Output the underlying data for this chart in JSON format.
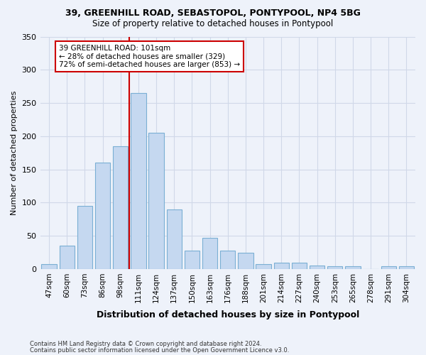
{
  "title1": "39, GREENHILL ROAD, SEBASTOPOL, PONTYPOOL, NP4 5BG",
  "title2": "Size of property relative to detached houses in Pontypool",
  "xlabel": "Distribution of detached houses by size in Pontypool",
  "ylabel": "Number of detached properties",
  "categories": [
    "47sqm",
    "60sqm",
    "73sqm",
    "86sqm",
    "98sqm",
    "111sqm",
    "124sqm",
    "137sqm",
    "150sqm",
    "163sqm",
    "176sqm",
    "188sqm",
    "201sqm",
    "214sqm",
    "227sqm",
    "240sqm",
    "253sqm",
    "265sqm",
    "278sqm",
    "291sqm",
    "304sqm"
  ],
  "values": [
    7,
    35,
    95,
    160,
    185,
    265,
    205,
    90,
    28,
    47,
    28,
    25,
    7,
    9,
    10,
    5,
    4,
    4,
    0,
    4,
    4
  ],
  "bar_color": "#c5d8f0",
  "bar_edge_color": "#7aafd4",
  "grid_color": "#d0d8e8",
  "bg_color": "#eef2fa",
  "property_line_x": 4.5,
  "annotation_text": "39 GREENHILL ROAD: 101sqm\n← 28% of detached houses are smaller (329)\n72% of semi-detached houses are larger (853) →",
  "annotation_box_color": "#ffffff",
  "annotation_box_edge": "#cc0000",
  "vline_color": "#cc0000",
  "footnote1": "Contains HM Land Registry data © Crown copyright and database right 2024.",
  "footnote2": "Contains public sector information licensed under the Open Government Licence v3.0.",
  "ylim": [
    0,
    350
  ],
  "yticks": [
    0,
    50,
    100,
    150,
    200,
    250,
    300,
    350
  ]
}
